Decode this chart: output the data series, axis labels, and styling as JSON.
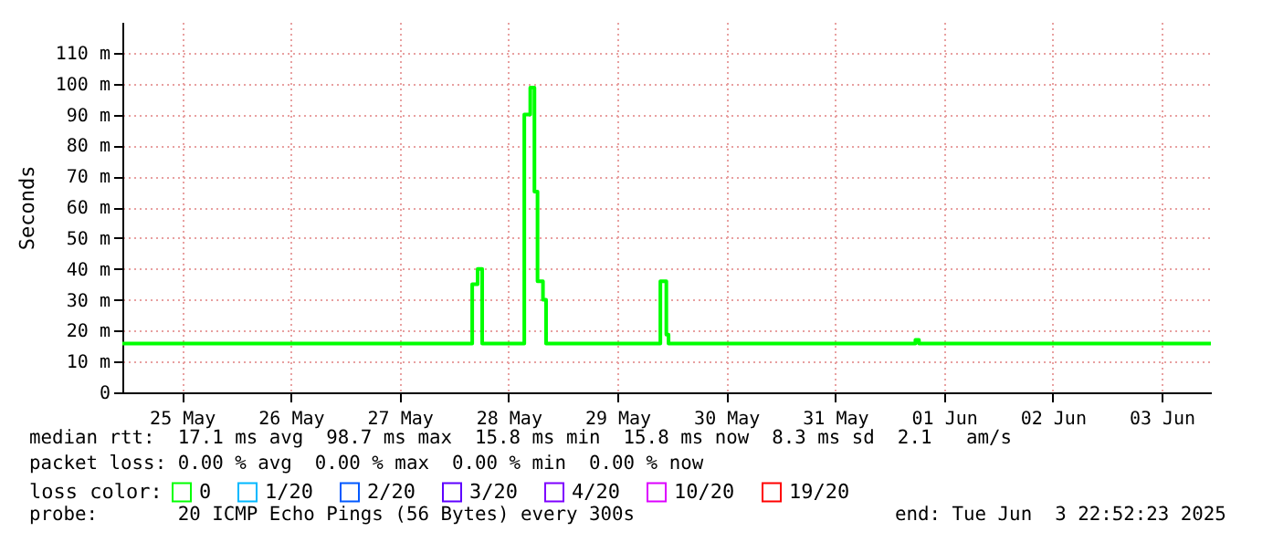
{
  "chart_data": {
    "type": "step",
    "ylabel": "Seconds",
    "legend_title": "loss color:",
    "x": [
      "2025-05-24T22:52",
      "2025-05-28T04:00",
      "2025-05-28T05:12",
      "2025-05-28T06:12",
      "2025-05-28T15:29",
      "2025-05-28T16:48",
      "2025-05-28T17:43",
      "2025-05-28T18:24",
      "2025-05-28T19:36",
      "2025-05-28T20:17",
      "2025-05-29T21:29",
      "2025-05-29T22:48",
      "2025-05-29T23:17",
      "2025-06-01T05:43",
      "2025-06-01T06:30",
      "2025-06-03T22:52"
    ],
    "series": [
      {
        "name": "0",
        "color": "#00ff00",
        "values": [
          15.8,
          35,
          40,
          15.8,
          90,
          98.7,
          65,
          36,
          30,
          15.8,
          36,
          18.7,
          15.8,
          17,
          15.8,
          15.8
        ]
      },
      {
        "name": "1/20",
        "color": "#00b8ff",
        "values": [
          null,
          null,
          null,
          null,
          null,
          null,
          null,
          null,
          null,
          null,
          null,
          null,
          null,
          null,
          null,
          null
        ]
      },
      {
        "name": "2/20",
        "color": "#0059ff",
        "values": [
          null,
          null,
          null,
          null,
          null,
          null,
          null,
          null,
          null,
          null,
          null,
          null,
          null,
          null,
          null,
          null
        ]
      },
      {
        "name": "3/20",
        "color": "#5e00ff",
        "values": [
          null,
          null,
          null,
          null,
          null,
          null,
          null,
          null,
          null,
          null,
          null,
          null,
          null,
          null,
          null,
          null
        ]
      },
      {
        "name": "4/20",
        "color": "#7e00ff",
        "values": [
          null,
          null,
          null,
          null,
          null,
          null,
          null,
          null,
          null,
          null,
          null,
          null,
          null,
          null,
          null,
          null
        ]
      },
      {
        "name": "10/20",
        "color": "#dd00ff",
        "values": [
          null,
          null,
          null,
          null,
          null,
          null,
          null,
          null,
          null,
          null,
          null,
          null,
          null,
          null,
          null,
          null
        ]
      },
      {
        "name": "19/20",
        "color": "#ff0000",
        "values": [
          null,
          null,
          null,
          null,
          null,
          null,
          null,
          null,
          null,
          null,
          null,
          null,
          null,
          null,
          null,
          null
        ]
      }
    ],
    "xlim": [
      "2025-05-24T22:52",
      "2025-06-03T22:52"
    ],
    "xticks": [
      {
        "value": "2025-05-25T12:00",
        "label": "25 May"
      },
      {
        "value": "2025-05-26T12:00",
        "label": "26 May"
      },
      {
        "value": "2025-05-27T12:00",
        "label": "27 May"
      },
      {
        "value": "2025-05-28T12:00",
        "label": "28 May"
      },
      {
        "value": "2025-05-29T12:00",
        "label": "29 May"
      },
      {
        "value": "2025-05-30T12:00",
        "label": "30 May"
      },
      {
        "value": "2025-05-31T12:00",
        "label": "31 May"
      },
      {
        "value": "2025-06-01T12:00",
        "label": "01 Jun"
      },
      {
        "value": "2025-06-02T12:00",
        "label": "02 Jun"
      },
      {
        "value": "2025-06-03T12:00",
        "label": "03 Jun"
      }
    ],
    "ylim": [
      0,
      120
    ],
    "yticks": [
      0,
      {
        "value": 10,
        "label": "10 m"
      },
      {
        "value": 20,
        "label": "20 m"
      },
      {
        "value": 30,
        "label": "30 m"
      },
      {
        "value": 40,
        "label": "40 m"
      },
      {
        "value": 50,
        "label": "50 m"
      },
      {
        "value": 60,
        "label": "60 m"
      },
      {
        "value": 70,
        "label": "70 m"
      },
      {
        "value": 80,
        "label": "80 m"
      },
      {
        "value": 90,
        "label": "90 m"
      },
      {
        "value": 100,
        "label": "100 m"
      },
      {
        "value": 110,
        "label": "110 m"
      }
    ],
    "grid": true,
    "legend": "bottom",
    "annotations": [
      "median rtt:  17.1 ms avg  98.7 ms max  15.8 ms min  15.8 ms now  8.3 ms sd  2.1   am/s",
      "packet loss: 0.00 % avg  0.00 % max  0.00 % min  0.00 % now",
      "probe:       20 ICMP Echo Pings (56 Bytes) every 300s",
      "end: Tue Jun  3 22:52:23 2025"
    ]
  }
}
